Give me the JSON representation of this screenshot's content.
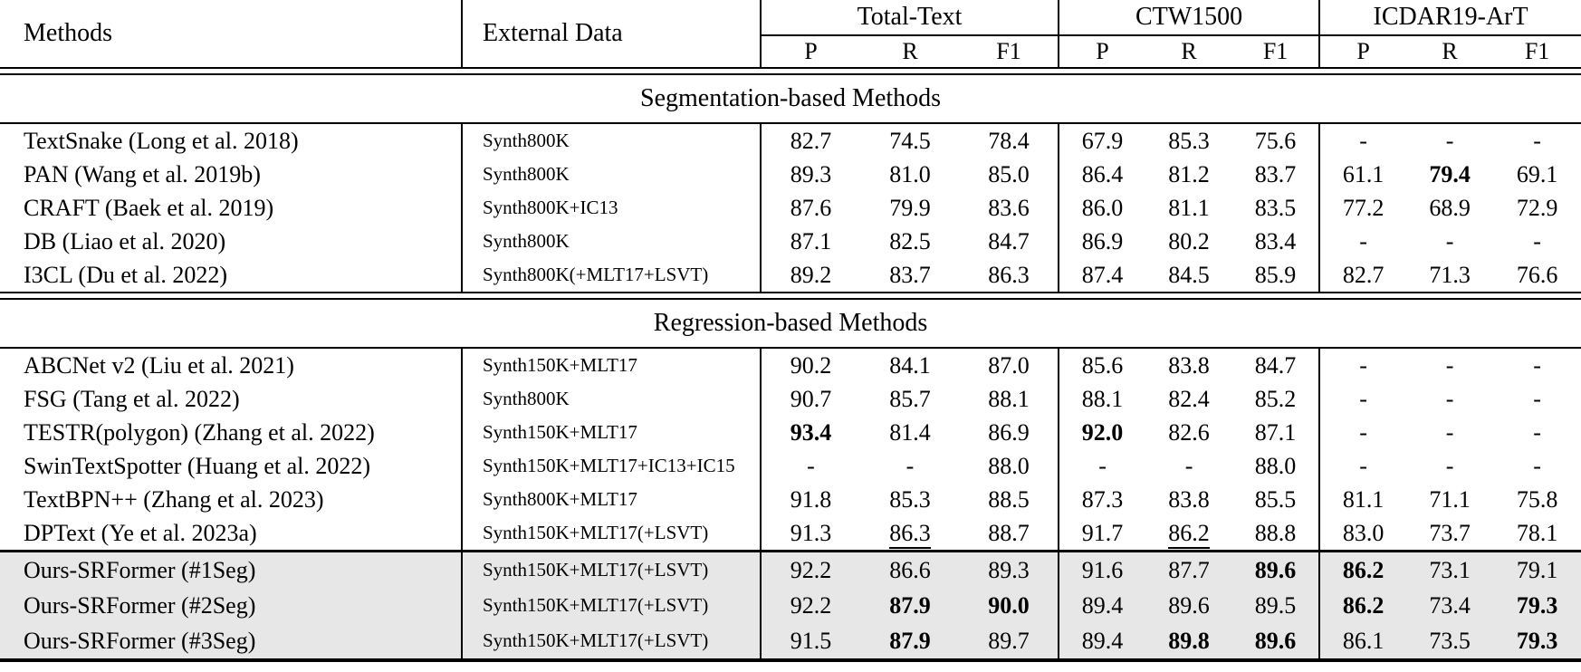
{
  "table": {
    "header": {
      "methods": "Methods",
      "external_data": "External Data",
      "groups": [
        {
          "label": "Total-Text",
          "sub": [
            "P",
            "R",
            "F1"
          ]
        },
        {
          "label": "CTW1500",
          "sub": [
            "P",
            "R",
            "F1"
          ]
        },
        {
          "label": "ICDAR19-ArT",
          "sub": [
            "P",
            "R",
            "F1"
          ]
        }
      ]
    },
    "sections": [
      {
        "title": "Segmentation-based Methods",
        "rows": [
          {
            "method": "TextSnake (Long et al. 2018)",
            "external": "Synth800K",
            "values": [
              "82.7",
              "74.5",
              "78.4",
              "67.9",
              "85.3",
              "75.6",
              "-",
              "-",
              "-"
            ],
            "bold": [],
            "underline": []
          },
          {
            "method": "PAN (Wang et al. 2019b)",
            "external": "Synth800K",
            "values": [
              "89.3",
              "81.0",
              "85.0",
              "86.4",
              "81.2",
              "83.7",
              "61.1",
              "79.4",
              "69.1"
            ],
            "bold": [
              7
            ],
            "underline": []
          },
          {
            "method": "CRAFT (Baek et al. 2019)",
            "external": "Synth800K+IC13",
            "values": [
              "87.6",
              "79.9",
              "83.6",
              "86.0",
              "81.1",
              "83.5",
              "77.2",
              "68.9",
              "72.9"
            ],
            "bold": [],
            "underline": []
          },
          {
            "method": "DB (Liao et al. 2020)",
            "external": "Synth800K",
            "values": [
              "87.1",
              "82.5",
              "84.7",
              "86.9",
              "80.2",
              "83.4",
              "-",
              "-",
              "-"
            ],
            "bold": [],
            "underline": []
          },
          {
            "method": "I3CL (Du et al. 2022)",
            "external": "Synth800K(+MLT17+LSVT)",
            "values": [
              "89.2",
              "83.7",
              "86.3",
              "87.4",
              "84.5",
              "85.9",
              "82.7",
              "71.3",
              "76.6"
            ],
            "bold": [],
            "underline": []
          }
        ]
      },
      {
        "title": "Regression-based Methods",
        "rows": [
          {
            "method": "ABCNet v2 (Liu et al. 2021)",
            "external": "Synth150K+MLT17",
            "values": [
              "90.2",
              "84.1",
              "87.0",
              "85.6",
              "83.8",
              "84.7",
              "-",
              "-",
              "-"
            ],
            "bold": [],
            "underline": []
          },
          {
            "method": "FSG (Tang et al. 2022)",
            "external": "Synth800K",
            "values": [
              "90.7",
              "85.7",
              "88.1",
              "88.1",
              "82.4",
              "85.2",
              "-",
              "-",
              "-"
            ],
            "bold": [],
            "underline": []
          },
          {
            "method": "TESTR(polygon) (Zhang et al. 2022)",
            "external": "Synth150K+MLT17",
            "values": [
              "93.4",
              "81.4",
              "86.9",
              "92.0",
              "82.6",
              "87.1",
              "-",
              "-",
              "-"
            ],
            "bold": [
              0,
              3
            ],
            "underline": []
          },
          {
            "method": "SwinTextSpotter (Huang et al. 2022)",
            "external": "Synth150K+MLT17+IC13+IC15",
            "values": [
              "-",
              "-",
              "88.0",
              "-",
              "-",
              "88.0",
              "-",
              "-",
              "-"
            ],
            "bold": [],
            "underline": []
          },
          {
            "method": "TextBPN++ (Zhang et al. 2023)",
            "external": "Synth800K+MLT17",
            "values": [
              "91.8",
              "85.3",
              "88.5",
              "87.3",
              "83.8",
              "85.5",
              "81.1",
              "71.1",
              "75.8"
            ],
            "bold": [],
            "underline": []
          },
          {
            "method": "DPText (Ye et al. 2023a)",
            "external": "Synth150K+MLT17(+LSVT)",
            "values": [
              "91.3",
              "86.3",
              "88.7",
              "91.7",
              "86.2",
              "88.8",
              "83.0",
              "73.7",
              "78.1"
            ],
            "bold": [],
            "underline": [
              1,
              4
            ]
          }
        ]
      }
    ],
    "ours": {
      "highlight_color": "#e7e7e7",
      "rows": [
        {
          "method": "Ours-SRFormer (#1Seg)",
          "external": "Synth150K+MLT17(+LSVT)",
          "values": [
            "92.2",
            "86.6",
            "89.3",
            "91.6",
            "87.7",
            "89.6",
            "86.2",
            "73.1",
            "79.1"
          ],
          "bold": [
            5,
            6
          ],
          "underline": []
        },
        {
          "method": "Ours-SRFormer (#2Seg)",
          "external": "Synth150K+MLT17(+LSVT)",
          "values": [
            "92.2",
            "87.9",
            "90.0",
            "89.4",
            "89.6",
            "89.5",
            "86.2",
            "73.4",
            "79.3"
          ],
          "bold": [
            1,
            2,
            6,
            8
          ],
          "underline": []
        },
        {
          "method": "Ours-SRFormer (#3Seg)",
          "external": "Synth150K+MLT17(+LSVT)",
          "values": [
            "91.5",
            "87.9",
            "89.7",
            "89.4",
            "89.8",
            "89.6",
            "86.1",
            "73.5",
            "79.3"
          ],
          "bold": [
            1,
            4,
            5,
            8
          ],
          "underline": []
        }
      ]
    }
  }
}
